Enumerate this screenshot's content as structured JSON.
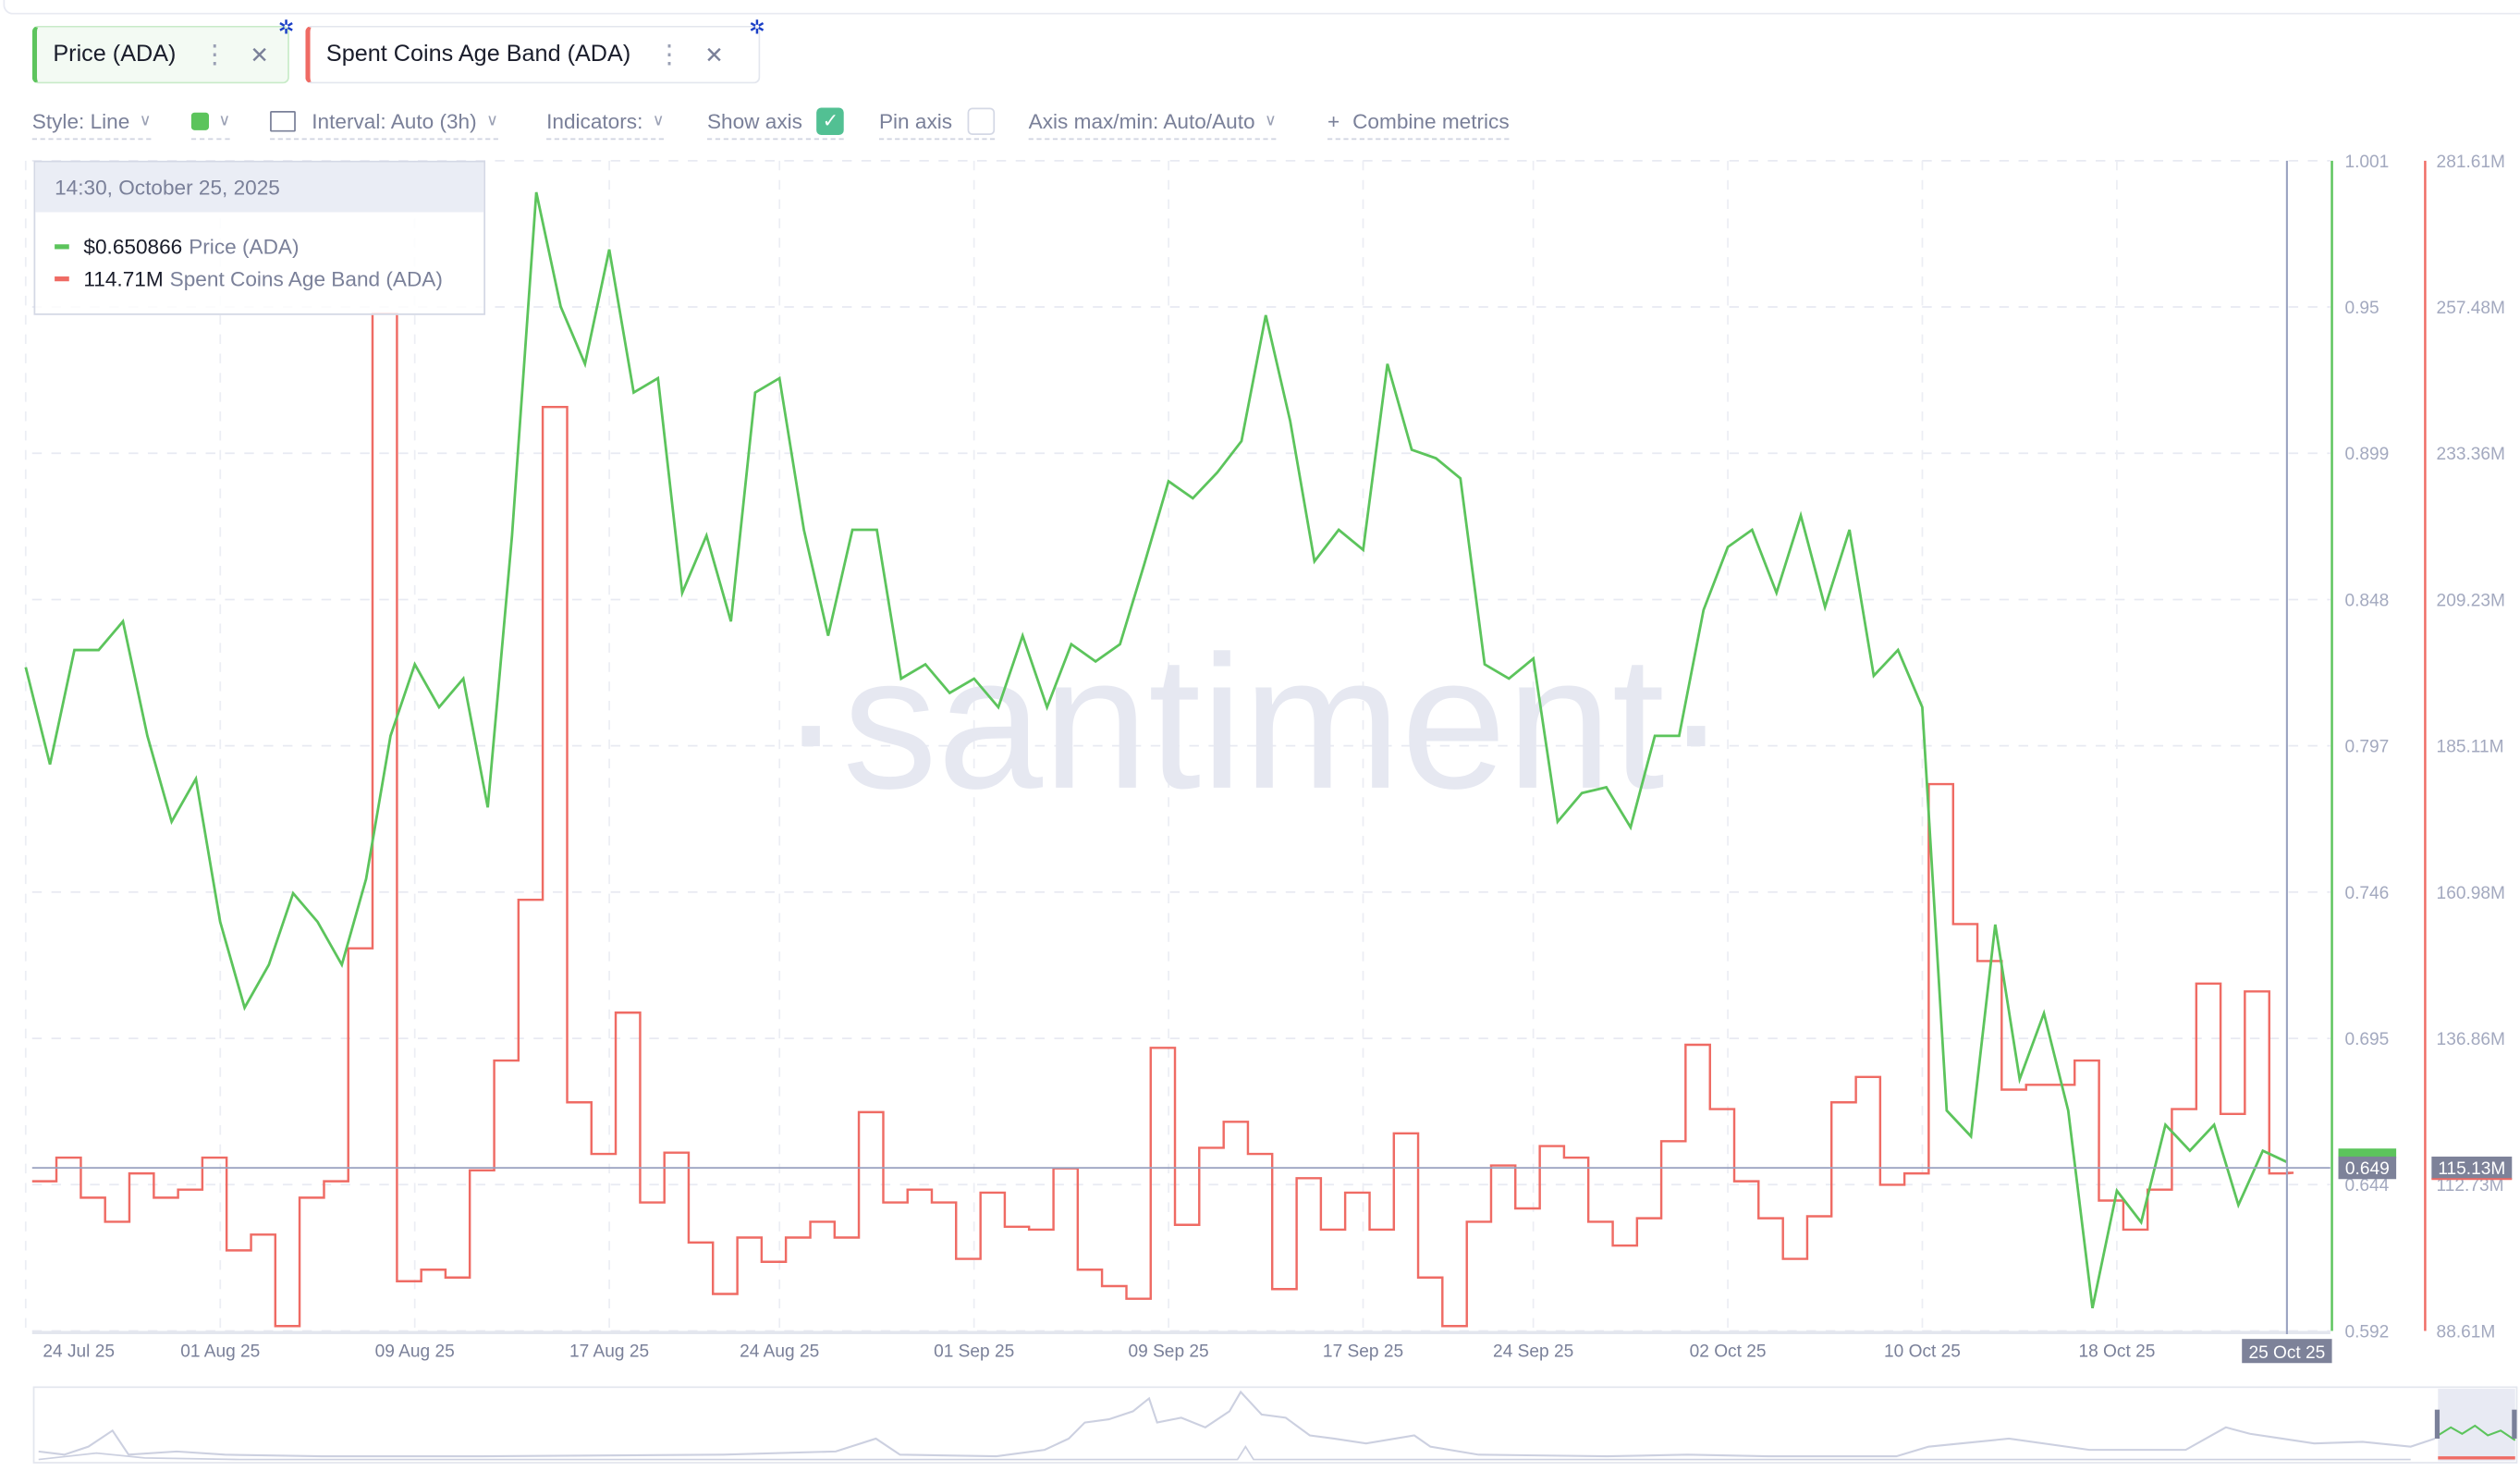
{
  "tabs": [
    {
      "label": "Price (ADA)",
      "color": "#5cc45c",
      "menu_icon": "kebab-icon",
      "close_icon": "close-icon",
      "settings_icon": "gear-icon"
    },
    {
      "label": "Spent Coins Age Band (ADA)",
      "color": "#ef6b64",
      "menu_icon": "kebab-icon",
      "close_icon": "close-icon",
      "settings_icon": "gear-icon"
    }
  ],
  "toolbar": {
    "style": "Style: Line",
    "interval": "Interval: Auto (3h)",
    "indicators": "Indicators:",
    "show_axis": "Show axis",
    "show_axis_checked": true,
    "pin_axis": "Pin axis",
    "pin_axis_checked": false,
    "axis_maxmin": "Axis max/min: Auto/Auto",
    "combine": "Combine metrics",
    "color_swatch": "#5cc45c",
    "check_color": "#52c093"
  },
  "tooltip": {
    "date": "14:30, October 25, 2025",
    "rows": [
      {
        "value": "$0.650866",
        "name": "Price (ADA)",
        "color": "#5cc45c"
      },
      {
        "value": "114.71M",
        "name": "Spent Coins Age Band (ADA)",
        "color": "#ef6b64"
      }
    ]
  },
  "watermark": "·santiment·",
  "chart_data": {
    "type": "line",
    "x_ticks": [
      "24 Jul 25",
      "01 Aug 25",
      "09 Aug 25",
      "17 Aug 25",
      "24 Aug 25",
      "01 Sep 25",
      "09 Sep 25",
      "17 Sep 25",
      "24 Sep 25",
      "02 Oct 25",
      "10 Oct 25",
      "18 Oct 25"
    ],
    "x_tick_dates": [
      "2025-07-24",
      "2025-08-01",
      "2025-08-09",
      "2025-08-17",
      "2025-08-24",
      "2025-09-01",
      "2025-09-09",
      "2025-09-17",
      "2025-09-24",
      "2025-10-02",
      "2025-10-10",
      "2025-10-18"
    ],
    "crosshair": {
      "date": "2025-10-25",
      "date_label": "25 Oct 25",
      "price_label": "0.649",
      "spent_label": "115.13M",
      "price_value": 0.649
    },
    "left_axis": {
      "ticks": [
        "1.001",
        "0.95",
        "0.899",
        "0.848",
        "0.797",
        "0.746",
        "0.695",
        "0.644",
        "0.592"
      ],
      "range": [
        0.592,
        1.001
      ]
    },
    "right_axis": {
      "ticks": [
        "281.61M",
        "257.48M",
        "233.36M",
        "209.23M",
        "185.11M",
        "160.98M",
        "136.86M",
        "112.73M",
        "88.61M"
      ],
      "range": [
        88.61,
        281.61
      ]
    },
    "grid": true,
    "dates": [
      "2025-07-24",
      "2025-07-25",
      "2025-07-26",
      "2025-07-27",
      "2025-07-28",
      "2025-07-29",
      "2025-07-30",
      "2025-07-31",
      "2025-08-01",
      "2025-08-02",
      "2025-08-03",
      "2025-08-04",
      "2025-08-05",
      "2025-08-06",
      "2025-08-07",
      "2025-08-08",
      "2025-08-09",
      "2025-08-10",
      "2025-08-11",
      "2025-08-12",
      "2025-08-13",
      "2025-08-14",
      "2025-08-15",
      "2025-08-16",
      "2025-08-17",
      "2025-08-18",
      "2025-08-19",
      "2025-08-20",
      "2025-08-21",
      "2025-08-22",
      "2025-08-23",
      "2025-08-24",
      "2025-08-25",
      "2025-08-26",
      "2025-08-27",
      "2025-08-28",
      "2025-08-29",
      "2025-08-30",
      "2025-08-31",
      "2025-09-01",
      "2025-09-02",
      "2025-09-03",
      "2025-09-04",
      "2025-09-05",
      "2025-09-06",
      "2025-09-07",
      "2025-09-08",
      "2025-09-09",
      "2025-09-10",
      "2025-09-11",
      "2025-09-12",
      "2025-09-13",
      "2025-09-14",
      "2025-09-15",
      "2025-09-16",
      "2025-09-17",
      "2025-09-18",
      "2025-09-19",
      "2025-09-20",
      "2025-09-21",
      "2025-09-22",
      "2025-09-23",
      "2025-09-24",
      "2025-09-25",
      "2025-09-26",
      "2025-09-27",
      "2025-09-28",
      "2025-09-29",
      "2025-09-30",
      "2025-10-01",
      "2025-10-02",
      "2025-10-03",
      "2025-10-04",
      "2025-10-05",
      "2025-10-06",
      "2025-10-07",
      "2025-10-08",
      "2025-10-09",
      "2025-10-10",
      "2025-10-11",
      "2025-10-12",
      "2025-10-13",
      "2025-10-14",
      "2025-10-15",
      "2025-10-16",
      "2025-10-17",
      "2025-10-18",
      "2025-10-19",
      "2025-10-20",
      "2025-10-21",
      "2025-10-22",
      "2025-10-23",
      "2025-10-24",
      "2025-10-25"
    ],
    "series": [
      {
        "name": "Price (ADA)",
        "color": "#5cc45c",
        "axis": "left",
        "values": [
          0.824,
          0.79,
          0.83,
          0.83,
          0.84,
          0.8,
          0.77,
          0.785,
          0.735,
          0.705,
          0.72,
          0.745,
          0.735,
          0.72,
          0.75,
          0.8,
          0.825,
          0.81,
          0.82,
          0.775,
          0.87,
          0.99,
          0.95,
          0.93,
          0.97,
          0.92,
          0.925,
          0.85,
          0.87,
          0.84,
          0.92,
          0.925,
          0.872,
          0.835,
          0.872,
          0.872,
          0.82,
          0.825,
          0.815,
          0.82,
          0.81,
          0.835,
          0.81,
          0.832,
          0.826,
          0.832,
          0.86,
          0.889,
          0.883,
          0.892,
          0.903,
          0.947,
          0.91,
          0.861,
          0.872,
          0.865,
          0.93,
          0.9,
          0.897,
          0.89,
          0.825,
          0.82,
          0.827,
          0.77,
          0.78,
          0.782,
          0.768,
          0.8,
          0.8,
          0.844,
          0.866,
          0.872,
          0.85,
          0.877,
          0.845,
          0.872,
          0.821,
          0.83,
          0.81,
          0.669,
          0.66,
          0.734,
          0.68,
          0.703,
          0.669,
          0.6,
          0.641,
          0.63,
          0.664,
          0.655,
          0.664,
          0.636,
          0.655,
          0.651
        ]
      },
      {
        "name": "Spent Coins Age Band (ADA)",
        "color": "#ef6b64",
        "axis": "right",
        "unit": "M",
        "values": [
          113.3,
          117.2,
          110.6,
          106.6,
          114.6,
          110.6,
          111.9,
          117.2,
          101.9,
          104.5,
          89.4,
          110.6,
          113.3,
          151.7,
          256.4,
          96.8,
          98.7,
          97.4,
          115.1,
          133.2,
          159.7,
          241.0,
          126.3,
          117.8,
          141.1,
          109.8,
          118.0,
          103.2,
          94.7,
          104.0,
          100.0,
          104.0,
          106.6,
          104.0,
          124.7,
          109.8,
          111.9,
          109.8,
          100.5,
          111.4,
          105.8,
          105.3,
          115.4,
          98.7,
          96.0,
          93.9,
          135.3,
          106.1,
          118.8,
          123.1,
          117.8,
          95.5,
          113.8,
          105.3,
          111.4,
          105.3,
          121.2,
          97.4,
          89.4,
          106.6,
          115.9,
          108.8,
          119.1,
          117.2,
          106.6,
          102.7,
          107.2,
          119.9,
          135.8,
          125.2,
          113.3,
          107.2,
          100.5,
          107.5,
          126.3,
          130.5,
          112.7,
          114.6,
          178.8,
          155.7,
          149.6,
          128.4,
          129.2,
          129.2,
          133.2,
          110.1,
          105.3,
          111.9,
          125.2,
          145.9,
          124.4,
          144.6,
          114.6,
          114.71
        ]
      }
    ]
  }
}
